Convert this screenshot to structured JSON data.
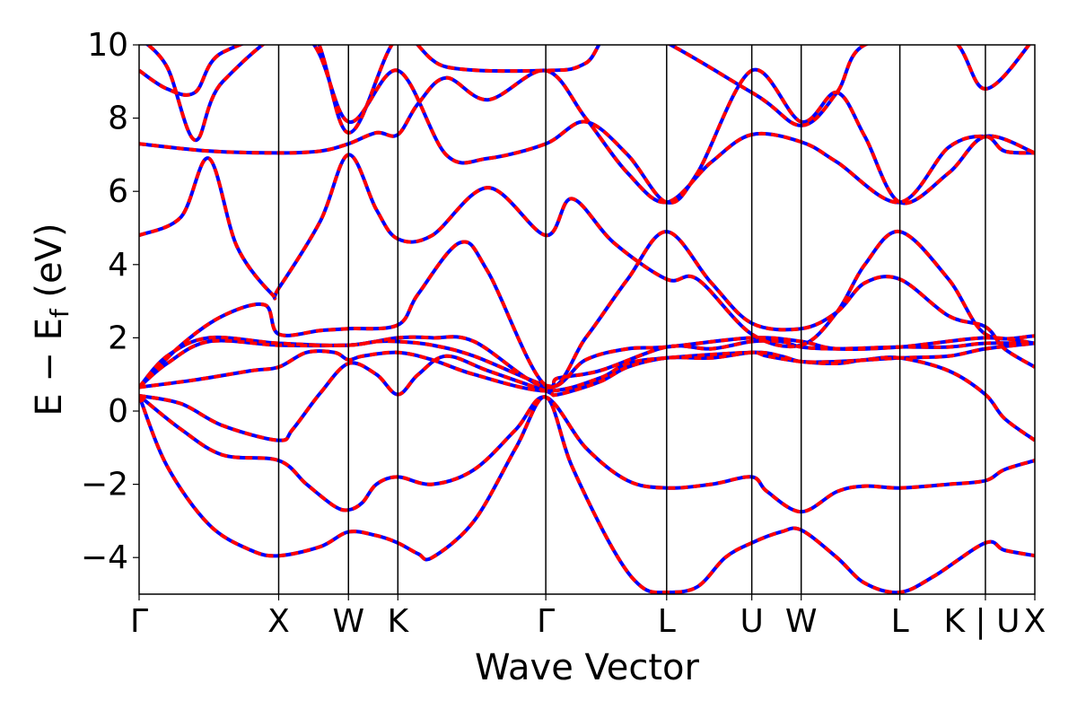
{
  "chart_data": {
    "type": "line",
    "title": "",
    "xlabel": "Wave Vector",
    "ylabel_main": "E − E",
    "ylabel_sub": "f",
    "ylabel_unit": " (eV)",
    "ylim": [
      -5,
      10
    ],
    "yticks": [
      -4,
      -2,
      0,
      2,
      4,
      6,
      8,
      10
    ],
    "ytick_labels": [
      "−4",
      "−2",
      "0",
      "2",
      "4",
      "6",
      "8",
      "10"
    ],
    "k_path": [
      {
        "label": "Γ",
        "k": 0.0
      },
      {
        "label": "X",
        "k": 1.0
      },
      {
        "label": "W",
        "k": 1.5
      },
      {
        "label": "K",
        "k": 1.854
      },
      {
        "label": "Γ",
        "k": 2.914
      },
      {
        "label": "L",
        "k": 3.78
      },
      {
        "label": "U",
        "k": 4.39
      },
      {
        "label": "W",
        "k": 4.744
      },
      {
        "label": "L",
        "k": 5.451
      },
      {
        "label": "K | U",
        "k": 6.064
      },
      {
        "label": "X",
        "k": 6.418
      }
    ],
    "xlim": [
      0,
      6.418
    ],
    "series_styles": [
      {
        "color": "#0000ff",
        "dash": "none",
        "width": 4
      },
      {
        "color": "#ff0000",
        "dash": "8,6",
        "width": 4
      }
    ],
    "bands": [
      [
        [
          0,
          0.42
        ],
        [
          0.2,
          -1.5
        ],
        [
          0.5,
          -3.1
        ],
        [
          0.8,
          -3.8
        ],
        [
          1.0,
          -3.95
        ],
        [
          1.3,
          -3.7
        ],
        [
          1.5,
          -3.3
        ],
        [
          1.7,
          -3.4
        ],
        [
          1.854,
          -3.6
        ],
        [
          2.0,
          -3.9
        ],
        [
          2.1,
          -4.0
        ],
        [
          2.4,
          -3.0
        ],
        [
          2.7,
          -1.0
        ],
        [
          2.914,
          0.38
        ],
        [
          3.1,
          -1.5
        ],
        [
          3.4,
          -3.8
        ],
        [
          3.6,
          -4.8
        ],
        [
          3.78,
          -4.95
        ],
        [
          4.0,
          -4.8
        ],
        [
          4.2,
          -4.0
        ],
        [
          4.39,
          -3.6
        ],
        [
          4.6,
          -3.3
        ],
        [
          4.744,
          -3.25
        ],
        [
          5.0,
          -4.0
        ],
        [
          5.2,
          -4.7
        ],
        [
          5.451,
          -4.95
        ],
        [
          5.7,
          -4.5
        ],
        [
          6.064,
          -3.6
        ],
        [
          6.2,
          -3.8
        ],
        [
          6.418,
          -3.95
        ]
      ],
      [
        [
          0,
          0.42
        ],
        [
          0.3,
          -0.5
        ],
        [
          0.6,
          -1.2
        ],
        [
          1.0,
          -1.35
        ],
        [
          1.2,
          -2.0
        ],
        [
          1.4,
          -2.6
        ],
        [
          1.5,
          -2.7
        ],
        [
          1.6,
          -2.5
        ],
        [
          1.7,
          -2.0
        ],
        [
          1.854,
          -1.8
        ],
        [
          2.1,
          -2.0
        ],
        [
          2.4,
          -1.6
        ],
        [
          2.7,
          -0.5
        ],
        [
          2.914,
          0.38
        ],
        [
          3.2,
          -1.0
        ],
        [
          3.5,
          -1.9
        ],
        [
          3.78,
          -2.1
        ],
        [
          4.1,
          -2.0
        ],
        [
          4.39,
          -1.8
        ],
        [
          4.5,
          -2.2
        ],
        [
          4.744,
          -2.75
        ],
        [
          5.0,
          -2.2
        ],
        [
          5.2,
          -2.05
        ],
        [
          5.451,
          -2.1
        ],
        [
          5.8,
          -2.0
        ],
        [
          6.064,
          -1.9
        ],
        [
          6.2,
          -1.6
        ],
        [
          6.418,
          -1.35
        ]
      ],
      [
        [
          0,
          0.42
        ],
        [
          0.3,
          0.2
        ],
        [
          0.6,
          -0.4
        ],
        [
          1.0,
          -0.8
        ],
        [
          1.1,
          -0.5
        ],
        [
          1.3,
          0.5
        ],
        [
          1.5,
          1.3
        ],
        [
          1.7,
          1.0
        ],
        [
          1.854,
          0.45
        ],
        [
          2.0,
          1.0
        ],
        [
          2.2,
          1.5
        ],
        [
          2.5,
          1.1
        ],
        [
          2.914,
          0.55
        ],
        [
          3.0,
          0.45
        ],
        [
          3.3,
          0.8
        ],
        [
          3.5,
          1.2
        ],
        [
          3.78,
          1.45
        ],
        [
          4.1,
          1.45
        ],
        [
          4.39,
          1.6
        ],
        [
          4.5,
          1.5
        ],
        [
          4.744,
          1.35
        ],
        [
          5.0,
          1.3
        ],
        [
          5.2,
          1.4
        ],
        [
          5.451,
          1.45
        ],
        [
          5.8,
          1.1
        ],
        [
          6.064,
          0.45
        ],
        [
          6.2,
          -0.2
        ],
        [
          6.418,
          -0.8
        ]
      ],
      [
        [
          0,
          0.65
        ],
        [
          0.4,
          0.85
        ],
        [
          0.8,
          1.1
        ],
        [
          1.0,
          1.2
        ],
        [
          1.2,
          1.6
        ],
        [
          1.4,
          1.6
        ],
        [
          1.5,
          1.4
        ],
        [
          1.6,
          1.5
        ],
        [
          1.854,
          1.6
        ],
        [
          2.1,
          1.4
        ],
        [
          2.4,
          1.0
        ],
        [
          2.914,
          0.55
        ],
        [
          3.3,
          0.9
        ],
        [
          3.5,
          1.3
        ],
        [
          3.78,
          1.45
        ],
        [
          4.39,
          1.6
        ],
        [
          4.6,
          1.5
        ],
        [
          4.744,
          1.35
        ],
        [
          5.0,
          1.35
        ],
        [
          5.451,
          1.45
        ],
        [
          5.8,
          1.5
        ],
        [
          6.064,
          1.7
        ],
        [
          6.418,
          1.85
        ]
      ],
      [
        [
          0,
          0.65
        ],
        [
          0.2,
          1.3
        ],
        [
          0.5,
          1.9
        ],
        [
          1.0,
          1.8
        ],
        [
          1.5,
          1.8
        ],
        [
          1.7,
          1.9
        ],
        [
          1.854,
          1.9
        ],
        [
          2.1,
          1.8
        ],
        [
          2.4,
          1.5
        ],
        [
          2.914,
          0.7
        ],
        [
          3.0,
          0.9
        ],
        [
          3.3,
          1.1
        ],
        [
          3.78,
          1.75
        ],
        [
          4.1,
          1.7
        ],
        [
          4.39,
          1.9
        ],
        [
          4.6,
          1.9
        ],
        [
          4.744,
          1.75
        ],
        [
          5.0,
          1.7
        ],
        [
          5.451,
          1.75
        ],
        [
          5.8,
          1.75
        ],
        [
          6.064,
          1.85
        ],
        [
          6.418,
          1.85
        ]
      ],
      [
        [
          0,
          0.65
        ],
        [
          0.2,
          1.5
        ],
        [
          0.5,
          2.0
        ],
        [
          1.0,
          1.85
        ],
        [
          1.5,
          1.8
        ],
        [
          1.854,
          2.0
        ],
        [
          2.1,
          2.0
        ],
        [
          2.4,
          1.9
        ],
        [
          2.914,
          0.65
        ],
        [
          3.2,
          1.4
        ],
        [
          3.5,
          1.7
        ],
        [
          3.78,
          1.75
        ],
        [
          4.39,
          2.0
        ],
        [
          4.744,
          1.9
        ],
        [
          5.0,
          1.7
        ],
        [
          5.451,
          1.75
        ],
        [
          6.064,
          2.0
        ],
        [
          6.418,
          1.85
        ]
      ],
      [
        [
          0,
          0.65
        ],
        [
          0.3,
          1.8
        ],
        [
          0.6,
          2.6
        ],
        [
          0.9,
          2.9
        ],
        [
          1.0,
          2.1
        ],
        [
          1.3,
          2.2
        ],
        [
          1.5,
          2.25
        ],
        [
          1.854,
          2.35
        ],
        [
          2.0,
          3.2
        ],
        [
          2.3,
          4.6
        ],
        [
          2.5,
          3.8
        ],
        [
          2.914,
          0.7
        ],
        [
          3.2,
          2.0
        ],
        [
          3.5,
          3.6
        ],
        [
          3.78,
          4.9
        ],
        [
          4.1,
          3.5
        ],
        [
          4.39,
          2.4
        ],
        [
          4.744,
          2.25
        ],
        [
          5.0,
          2.7
        ],
        [
          5.2,
          3.5
        ],
        [
          5.451,
          3.6
        ],
        [
          5.8,
          2.6
        ],
        [
          6.064,
          2.3
        ],
        [
          6.2,
          1.7
        ],
        [
          6.418,
          1.2
        ]
      ],
      [
        [
          0,
          4.8
        ],
        [
          0.3,
          5.3
        ],
        [
          0.5,
          6.9
        ],
        [
          0.7,
          4.5
        ],
        [
          0.95,
          3.2
        ],
        [
          1.0,
          3.35
        ],
        [
          1.3,
          5.2
        ],
        [
          1.5,
          7.0
        ],
        [
          1.7,
          5.5
        ],
        [
          1.854,
          4.7
        ],
        [
          2.1,
          4.8
        ],
        [
          2.5,
          6.1
        ],
        [
          2.914,
          4.8
        ],
        [
          3.1,
          5.8
        ],
        [
          3.4,
          4.6
        ],
        [
          3.78,
          3.6
        ],
        [
          4.0,
          3.6
        ],
        [
          4.39,
          2.1
        ],
        [
          4.744,
          1.8
        ],
        [
          5.0,
          2.7
        ],
        [
          5.2,
          4.0
        ],
        [
          5.451,
          4.9
        ],
        [
          5.8,
          3.6
        ],
        [
          6.064,
          2.1
        ],
        [
          6.418,
          2.05
        ]
      ],
      [
        [
          0,
          7.3
        ],
        [
          0.5,
          7.1
        ],
        [
          1.0,
          7.05
        ],
        [
          1.3,
          7.1
        ],
        [
          1.5,
          7.3
        ],
        [
          1.7,
          7.6
        ],
        [
          1.854,
          7.55
        ],
        [
          2.0,
          8.4
        ],
        [
          2.2,
          9.1
        ],
        [
          2.5,
          8.5
        ],
        [
          2.914,
          9.3
        ],
        [
          3.2,
          8.0
        ],
        [
          3.5,
          6.5
        ],
        [
          3.78,
          5.7
        ],
        [
          4.1,
          6.8
        ],
        [
          4.39,
          7.55
        ],
        [
          4.744,
          7.35
        ],
        [
          5.0,
          6.8
        ],
        [
          5.451,
          5.7
        ],
        [
          5.8,
          7.2
        ],
        [
          6.064,
          7.5
        ],
        [
          6.2,
          7.1
        ],
        [
          6.418,
          7.05
        ]
      ],
      [
        [
          0,
          9.3
        ],
        [
          0.2,
          8.8
        ],
        [
          0.4,
          8.7
        ],
        [
          0.6,
          9.8
        ],
        [
          1.2,
          10.2
        ],
        [
          1.5,
          7.9
        ],
        [
          1.854,
          9.3
        ],
        [
          2.2,
          7.0
        ],
        [
          2.5,
          6.9
        ],
        [
          2.914,
          7.3
        ],
        [
          3.2,
          7.9
        ],
        [
          3.5,
          7.0
        ],
        [
          3.78,
          5.7
        ],
        [
          4.0,
          6.5
        ],
        [
          4.39,
          9.3
        ],
        [
          4.744,
          7.9
        ],
        [
          5.0,
          8.7
        ],
        [
          5.2,
          7.5
        ],
        [
          5.451,
          5.7
        ],
        [
          5.8,
          6.5
        ],
        [
          6.064,
          7.5
        ],
        [
          6.418,
          7.05
        ]
      ],
      [
        [
          0,
          10.2
        ],
        [
          0.2,
          9.4
        ],
        [
          0.4,
          7.4
        ],
        [
          0.6,
          9.0
        ],
        [
          1.2,
          10.5
        ],
        [
          1.5,
          7.6
        ],
        [
          1.854,
          10.2
        ],
        [
          2.2,
          9.4
        ],
        [
          2.914,
          9.3
        ],
        [
          3.2,
          9.5
        ],
        [
          3.5,
          10.5
        ],
        [
          4.39,
          8.7
        ],
        [
          4.744,
          7.8
        ],
        [
          5.0,
          8.7
        ],
        [
          5.2,
          10.0
        ],
        [
          5.8,
          10.2
        ],
        [
          6.064,
          8.8
        ],
        [
          6.418,
          10.2
        ]
      ]
    ]
  }
}
